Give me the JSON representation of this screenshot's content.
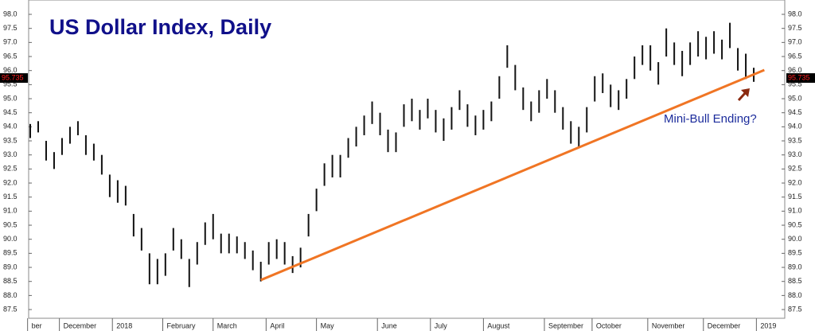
{
  "chart_data": {
    "type": "hilo",
    "title": "US Dollar Index, Daily",
    "annotation": "Mini-Bull Ending?",
    "color": "#111111",
    "x": [
      0,
      3,
      6,
      9,
      12,
      15,
      18,
      21,
      24,
      27,
      30,
      33,
      36,
      39,
      42,
      45,
      48,
      51,
      54,
      57,
      60,
      63,
      66,
      69,
      72,
      75,
      78,
      81,
      84,
      87,
      90,
      93,
      96,
      99,
      102,
      105,
      108,
      111,
      114,
      117,
      120,
      123,
      126,
      129,
      132,
      135,
      138,
      141,
      144,
      147,
      150,
      153,
      156,
      159,
      162,
      165,
      168,
      171,
      174,
      177,
      180,
      183,
      186,
      189,
      192,
      195,
      198,
      201,
      204,
      207,
      210,
      213,
      216,
      219,
      222,
      225,
      228,
      231,
      234,
      237,
      240,
      243,
      246,
      249,
      252,
      255,
      258,
      261,
      264,
      267,
      270,
      273
    ],
    "high": [
      94.1,
      94.2,
      93.5,
      93.1,
      93.6,
      94.0,
      94.2,
      93.7,
      93.4,
      93.0,
      92.3,
      92.1,
      91.9,
      90.9,
      90.4,
      89.5,
      89.3,
      89.5,
      90.4,
      90.0,
      89.3,
      89.9,
      90.6,
      90.9,
      90.2,
      90.2,
      90.1,
      89.9,
      89.6,
      89.2,
      89.9,
      90.0,
      89.9,
      89.4,
      89.7,
      90.9,
      91.8,
      92.7,
      93.0,
      93.0,
      93.6,
      94.0,
      94.4,
      94.9,
      94.5,
      93.9,
      93.8,
      94.8,
      95.0,
      94.6,
      95.0,
      94.6,
      94.3,
      94.7,
      95.3,
      94.8,
      94.4,
      94.6,
      94.9,
      95.8,
      96.9,
      96.2,
      95.4,
      94.9,
      95.3,
      95.7,
      95.3,
      94.7,
      94.2,
      94.0,
      94.7,
      95.8,
      95.9,
      95.5,
      95.3,
      95.7,
      96.5,
      96.9,
      96.9,
      96.3,
      97.5,
      97.0,
      96.7,
      97.0,
      97.4,
      97.2,
      97.4,
      97.1,
      97.7,
      96.8,
      96.6,
      96.1
    ],
    "low": [
      93.6,
      93.8,
      92.8,
      92.5,
      93.0,
      93.4,
      93.7,
      93.0,
      92.8,
      92.3,
      91.5,
      91.3,
      91.2,
      90.1,
      89.6,
      88.4,
      88.4,
      88.7,
      89.6,
      89.3,
      88.3,
      89.1,
      89.8,
      90.0,
      89.5,
      89.5,
      89.5,
      89.3,
      88.9,
      88.5,
      89.1,
      89.3,
      89.1,
      88.8,
      89.0,
      90.1,
      91.0,
      91.9,
      92.2,
      92.2,
      92.9,
      93.3,
      93.7,
      94.1,
      93.7,
      93.1,
      93.1,
      94.0,
      94.2,
      93.9,
      94.3,
      93.8,
      93.5,
      93.9,
      94.6,
      94.0,
      93.7,
      93.9,
      94.2,
      95.0,
      96.1,
      95.3,
      94.6,
      94.2,
      94.5,
      95.0,
      94.5,
      93.9,
      93.4,
      93.3,
      93.8,
      94.9,
      95.2,
      94.7,
      94.6,
      95.0,
      95.7,
      96.2,
      96.0,
      95.5,
      96.5,
      96.2,
      95.8,
      96.2,
      96.5,
      96.4,
      96.6,
      96.4,
      96.8,
      96.0,
      95.7,
      95.6
    ],
    "trendline": {
      "x": [
        87,
        277
      ],
      "y": [
        88.55,
        96.02
      ],
      "color": "#f07524"
    },
    "last_price": 95.735,
    "xlim": [
      -0.6,
      284.7
    ],
    "ylim": [
      87.19,
      98.51
    ],
    "xticks": [
      {
        "value": -1,
        "label": "ber"
      },
      {
        "value": 11,
        "label": "December"
      },
      {
        "value": 31,
        "label": "2018"
      },
      {
        "value": 50,
        "label": "February"
      },
      {
        "value": 69,
        "label": "March"
      },
      {
        "value": 89,
        "label": "April"
      },
      {
        "value": 108,
        "label": "May"
      },
      {
        "value": 131,
        "label": "June"
      },
      {
        "value": 151,
        "label": "July"
      },
      {
        "value": 171,
        "label": "August"
      },
      {
        "value": 194,
        "label": "September"
      },
      {
        "value": 212,
        "label": "October"
      },
      {
        "value": 233,
        "label": "November"
      },
      {
        "value": 254,
        "label": "December"
      },
      {
        "value": 274,
        "label": "2019"
      }
    ],
    "yticks": [
      {
        "value": 87.5,
        "label": "87.5"
      },
      {
        "value": 88,
        "label": "88.0"
      },
      88.5,
      {
        "value": 89,
        "label": "89.0"
      },
      89.5,
      {
        "value": 90,
        "label": "90.0"
      },
      90.5,
      {
        "value": 91,
        "label": "91.0"
      },
      91.5,
      {
        "value": 92,
        "label": "92.0"
      },
      92.5,
      {
        "value": 93,
        "label": "93.0"
      },
      93.5,
      {
        "value": 94,
        "label": "94.0"
      },
      94.5,
      {
        "value": 95,
        "label": "95.0"
      },
      95.5,
      {
        "value": 96,
        "label": "96.0"
      },
      96.5,
      {
        "value": 97,
        "label": "97.0"
      },
      97.5,
      {
        "value": 98,
        "label": "98.0"
      }
    ]
  }
}
